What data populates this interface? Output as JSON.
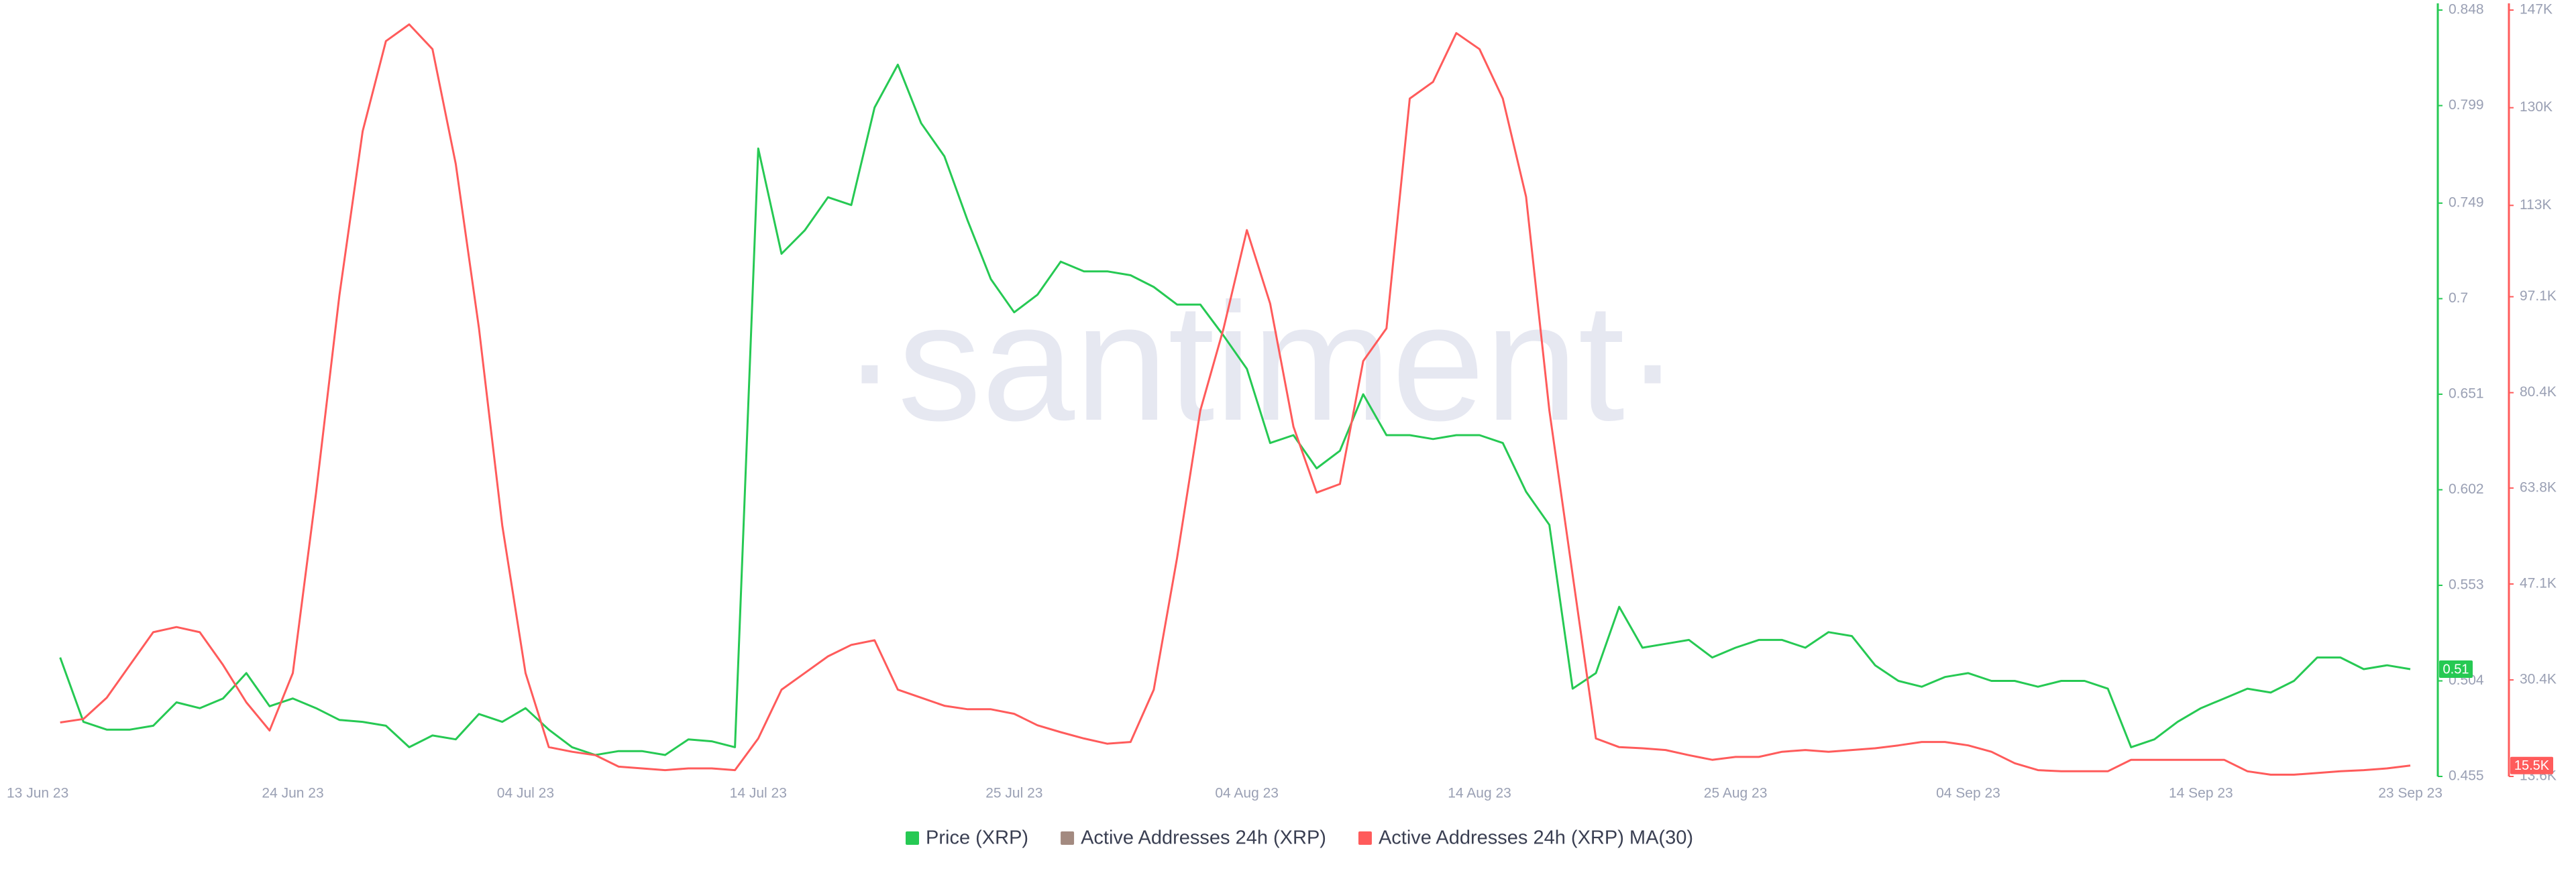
{
  "chart_data": {
    "type": "line",
    "watermark": "·santiment·",
    "x": [
      "2023-06-14",
      "2023-06-15",
      "2023-06-16",
      "2023-06-17",
      "2023-06-18",
      "2023-06-19",
      "2023-06-20",
      "2023-06-21",
      "2023-06-22",
      "2023-06-23",
      "2023-06-24",
      "2023-06-25",
      "2023-06-26",
      "2023-06-27",
      "2023-06-28",
      "2023-06-29",
      "2023-06-30",
      "2023-07-01",
      "2023-07-02",
      "2023-07-03",
      "2023-07-04",
      "2023-07-05",
      "2023-07-06",
      "2023-07-07",
      "2023-07-08",
      "2023-07-09",
      "2023-07-10",
      "2023-07-11",
      "2023-07-12",
      "2023-07-13",
      "2023-07-14",
      "2023-07-15",
      "2023-07-16",
      "2023-07-17",
      "2023-07-18",
      "2023-07-19",
      "2023-07-20",
      "2023-07-21",
      "2023-07-22",
      "2023-07-23",
      "2023-07-24",
      "2023-07-25",
      "2023-07-26",
      "2023-07-27",
      "2023-07-28",
      "2023-07-29",
      "2023-07-30",
      "2023-07-31",
      "2023-08-01",
      "2023-08-02",
      "2023-08-03",
      "2023-08-04",
      "2023-08-05",
      "2023-08-06",
      "2023-08-07",
      "2023-08-08",
      "2023-08-09",
      "2023-08-10",
      "2023-08-11",
      "2023-08-12",
      "2023-08-13",
      "2023-08-14",
      "2023-08-15",
      "2023-08-16",
      "2023-08-17",
      "2023-08-18",
      "2023-08-19",
      "2023-08-20",
      "2023-08-21",
      "2023-08-22",
      "2023-08-23",
      "2023-08-24",
      "2023-08-25",
      "2023-08-26",
      "2023-08-27",
      "2023-08-28",
      "2023-08-29",
      "2023-08-30",
      "2023-08-31",
      "2023-09-01",
      "2023-09-02",
      "2023-09-03",
      "2023-09-04",
      "2023-09-05",
      "2023-09-06",
      "2023-09-07",
      "2023-09-08",
      "2023-09-09",
      "2023-09-10",
      "2023-09-11",
      "2023-09-12",
      "2023-09-13",
      "2023-09-14",
      "2023-09-15",
      "2023-09-16",
      "2023-09-17",
      "2023-09-18",
      "2023-09-19",
      "2023-09-20",
      "2023-09-21",
      "2023-09-22",
      "2023-09-23"
    ],
    "xlim": [
      "2023-06-13",
      "2023-09-23"
    ],
    "xticks": [
      {
        "value": "2023-06-13",
        "label": "13 Jun 23"
      },
      {
        "value": "2023-06-24",
        "label": "24 Jun 23"
      },
      {
        "value": "2023-07-04",
        "label": "04 Jul 23"
      },
      {
        "value": "2023-07-14",
        "label": "14 Jul 23"
      },
      {
        "value": "2023-07-25",
        "label": "25 Jul 23"
      },
      {
        "value": "2023-08-04",
        "label": "04 Aug 23"
      },
      {
        "value": "2023-08-14",
        "label": "14 Aug 23"
      },
      {
        "value": "2023-08-25",
        "label": "25 Aug 23"
      },
      {
        "value": "2023-09-04",
        "label": "04 Sep 23"
      },
      {
        "value": "2023-09-14",
        "label": "14 Sep 23"
      },
      {
        "value": "2023-09-23",
        "label": "23 Sep 23"
      }
    ],
    "ylim": [
      0.455,
      0.848
    ],
    "yticks": [
      0.455,
      0.504,
      0.553,
      0.602,
      0.651,
      0.7,
      0.749,
      0.799,
      0.848
    ],
    "y2lim": [
      13600,
      147000
    ],
    "y2ticks": [
      {
        "value": 13600,
        "label": "13.6K"
      },
      {
        "value": 30400,
        "label": "30.4K"
      },
      {
        "value": 47100,
        "label": "47.1K"
      },
      {
        "value": 63800,
        "label": "63.8K"
      },
      {
        "value": 80400,
        "label": "80.4K"
      },
      {
        "value": 97100,
        "label": "97.1K"
      },
      {
        "value": 113000,
        "label": "113K"
      },
      {
        "value": 130000,
        "label": "130K"
      },
      {
        "value": 147000,
        "label": "147K"
      }
    ],
    "grid": true,
    "legend": "bottom",
    "series": [
      {
        "name": "Price (XRP)",
        "color": "#26c953",
        "badge": {
          "value": 0.51,
          "label": "0.51"
        },
        "values": [
          0.516,
          0.483,
          0.479,
          0.479,
          0.481,
          0.493,
          0.49,
          0.495,
          0.508,
          0.491,
          0.495,
          0.49,
          0.484,
          0.483,
          0.481,
          0.47,
          0.476,
          0.474,
          0.487,
          0.483,
          0.49,
          0.479,
          0.47,
          0.466,
          0.468,
          0.468,
          0.466,
          0.474,
          0.473,
          0.47,
          0.777,
          0.723,
          0.735,
          0.752,
          0.748,
          0.798,
          0.82,
          0.79,
          0.773,
          0.74,
          0.71,
          0.693,
          0.702,
          0.719,
          0.714,
          0.714,
          0.712,
          0.706,
          0.697,
          0.697,
          0.681,
          0.664,
          0.626,
          0.63,
          0.613,
          0.622,
          0.651,
          0.63,
          0.63,
          0.628,
          0.63,
          0.63,
          0.626,
          0.601,
          0.584,
          0.5,
          0.508,
          0.542,
          0.521,
          0.523,
          0.525,
          0.516,
          0.521,
          0.525,
          0.525,
          0.521,
          0.529,
          0.527,
          0.512,
          0.504,
          0.501,
          0.506,
          0.508,
          0.504,
          0.504,
          0.501,
          0.504,
          0.504,
          0.5,
          0.47,
          0.474,
          0.483,
          0.49,
          0.495,
          0.5,
          0.498,
          0.504,
          0.516,
          0.516,
          0.51,
          0.512,
          0.51
        ]
      },
      {
        "name": "Active Addresses 24h (XRP)",
        "color": "#a38a80"
      },
      {
        "name": "Active Addresses 24h (XRP) MA(30)",
        "color": "#ff5b5b",
        "axis": "y2",
        "badge": {
          "value": 15500,
          "label": "15.5K"
        },
        "values": [
          23000,
          23600,
          27300,
          33000,
          38700,
          39600,
          38700,
          33000,
          26500,
          21600,
          31600,
          63000,
          97300,
          125900,
          141600,
          144500,
          140200,
          120200,
          91600,
          57300,
          31600,
          18700,
          17900,
          17300,
          15300,
          15000,
          14700,
          15000,
          15000,
          14700,
          20200,
          28700,
          31600,
          34500,
          36500,
          37300,
          28700,
          27300,
          25900,
          25300,
          25300,
          24500,
          22500,
          21300,
          20200,
          19300,
          19600,
          28700,
          51600,
          77300,
          91600,
          108700,
          95900,
          74500,
          63000,
          64500,
          85900,
          91600,
          131600,
          134500,
          143000,
          140200,
          131600,
          114500,
          77300,
          48700,
          20200,
          18700,
          18500,
          18200,
          17300,
          16500,
          17000,
          17000,
          17900,
          18200,
          17900,
          18200,
          18500,
          19000,
          19600,
          19600,
          19000,
          17900,
          15900,
          14700,
          14500,
          14500,
          14500,
          16500,
          16500,
          16500,
          16500,
          16500,
          14500,
          13900,
          13900,
          14200,
          14500,
          14700,
          15000,
          15500
        ]
      }
    ]
  }
}
